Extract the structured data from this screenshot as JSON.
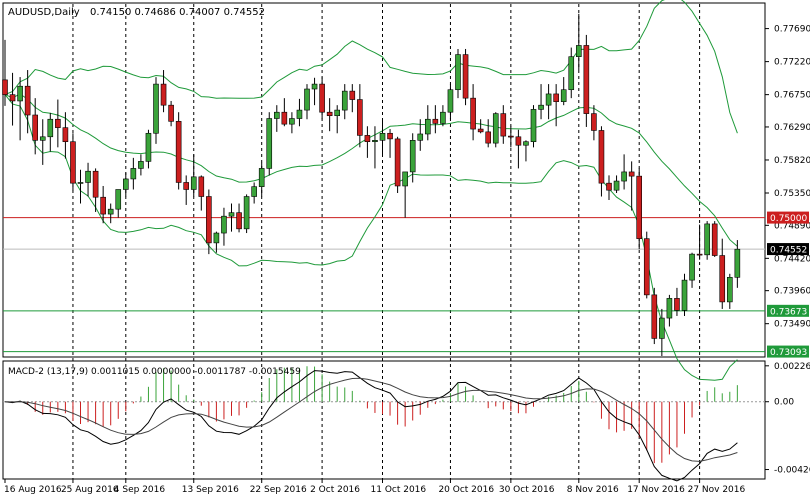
{
  "header": {
    "symbol": "AUDUSD,Daily",
    "ohlc": "0.74150 0.74686 0.74007 0.74552"
  },
  "macd_header": "MACD-2 (13,17,9) 0.0011015 0.0000000 -0.0011787 -0.0015459",
  "colors": {
    "bull": "#3aa33a",
    "bear": "#cc1f1f",
    "bands": "#1f9a3a",
    "resistance": "#cc1f1f",
    "support": "#1f9a3a",
    "current": "#000000"
  },
  "chart_data": [
    {
      "type": "candlestick",
      "title": "AUDUSD,Daily",
      "ylim": [
        0.7303,
        0.7804
      ],
      "y_ticks": [
        "0.77690",
        "0.77220",
        "0.76750",
        "0.76290",
        "0.75820",
        "0.75350",
        "0.74890",
        "0.74420",
        "0.73960",
        "0.73490"
      ],
      "x_ticks": [
        "16 Aug 2016",
        "25 Aug 2016",
        "4 Sep 2016",
        "13 Sep 2016",
        "22 Sep 2016",
        "2 Oct 2016",
        "11 Oct 2016",
        "20 Oct 2016",
        "30 Oct 2016",
        "8 Nov 2016",
        "17 Nov 2016",
        "27 Nov 2016"
      ],
      "price_labels": [
        {
          "name": "resistance",
          "value": "0.75000"
        },
        {
          "name": "current",
          "value": "0.74552"
        },
        {
          "name": "support-1",
          "value": "0.73673"
        },
        {
          "name": "support-2",
          "value": "0.73093"
        }
      ],
      "candles": [
        [
          0.7696,
          0.7753,
          0.7659,
          0.7675
        ],
        [
          0.7675,
          0.7706,
          0.7631,
          0.7666
        ],
        [
          0.7666,
          0.77,
          0.761,
          0.7687
        ],
        [
          0.7687,
          0.771,
          0.762,
          0.7646
        ],
        [
          0.7646,
          0.767,
          0.759,
          0.761
        ],
        [
          0.761,
          0.764,
          0.7575,
          0.7615
        ],
        [
          0.7615,
          0.7649,
          0.7594,
          0.764
        ],
        [
          0.764,
          0.7668,
          0.76,
          0.7628
        ],
        [
          0.7628,
          0.765,
          0.7584,
          0.7608
        ],
        [
          0.7608,
          0.762,
          0.7538,
          0.7549
        ],
        [
          0.7549,
          0.7568,
          0.752,
          0.755
        ],
        [
          0.755,
          0.7578,
          0.753,
          0.7566
        ],
        [
          0.7566,
          0.757,
          0.7508,
          0.7529
        ],
        [
          0.7529,
          0.7545,
          0.7492,
          0.7505
        ],
        [
          0.7505,
          0.752,
          0.7492,
          0.7512
        ],
        [
          0.7512,
          0.754,
          0.75,
          0.754
        ],
        [
          0.754,
          0.7564,
          0.753,
          0.7555
        ],
        [
          0.7555,
          0.7585,
          0.754,
          0.757
        ],
        [
          0.757,
          0.759,
          0.756,
          0.758
        ],
        [
          0.758,
          0.7625,
          0.757,
          0.762
        ],
        [
          0.762,
          0.77,
          0.7605,
          0.769
        ],
        [
          0.769,
          0.771,
          0.765,
          0.766
        ],
        [
          0.766,
          0.7666,
          0.763,
          0.7637
        ],
        [
          0.7637,
          0.765,
          0.754,
          0.755
        ],
        [
          0.755,
          0.756,
          0.7518,
          0.754
        ],
        [
          0.754,
          0.759,
          0.753,
          0.7558
        ],
        [
          0.7558,
          0.756,
          0.751,
          0.753
        ],
        [
          0.753,
          0.754,
          0.7448,
          0.7464
        ],
        [
          0.7464,
          0.748,
          0.745,
          0.7478
        ],
        [
          0.7478,
          0.7514,
          0.746,
          0.7502
        ],
        [
          0.7502,
          0.752,
          0.748,
          0.7507
        ],
        [
          0.7507,
          0.752,
          0.7479,
          0.7484
        ],
        [
          0.7484,
          0.7533,
          0.7478,
          0.753
        ],
        [
          0.753,
          0.755,
          0.752,
          0.7544
        ],
        [
          0.7544,
          0.7578,
          0.753,
          0.757
        ],
        [
          0.757,
          0.765,
          0.756,
          0.7641
        ],
        [
          0.7641,
          0.766,
          0.7622,
          0.765
        ],
        [
          0.765,
          0.767,
          0.763,
          0.7633
        ],
        [
          0.7633,
          0.765,
          0.762,
          0.7641
        ],
        [
          0.7641,
          0.7669,
          0.763,
          0.7653
        ],
        [
          0.7653,
          0.769,
          0.764,
          0.7683
        ],
        [
          0.7683,
          0.7699,
          0.766,
          0.769
        ],
        [
          0.769,
          0.77,
          0.764,
          0.765
        ],
        [
          0.765,
          0.767,
          0.7623,
          0.7645
        ],
        [
          0.7645,
          0.766,
          0.762,
          0.7653
        ],
        [
          0.7653,
          0.769,
          0.764,
          0.768
        ],
        [
          0.768,
          0.769,
          0.765,
          0.7668
        ],
        [
          0.7668,
          0.769,
          0.76,
          0.7617
        ],
        [
          0.7617,
          0.763,
          0.7585,
          0.7608
        ],
        [
          0.7608,
          0.763,
          0.757,
          0.761
        ],
        [
          0.761,
          0.764,
          0.759,
          0.762
        ],
        [
          0.762,
          0.7626,
          0.7585,
          0.7612
        ],
        [
          0.7612,
          0.7615,
          0.7535,
          0.7545
        ],
        [
          0.7545,
          0.756,
          0.75,
          0.7565
        ],
        [
          0.7565,
          0.762,
          0.755,
          0.761
        ],
        [
          0.761,
          0.764,
          0.7595,
          0.7619
        ],
        [
          0.7619,
          0.766,
          0.761,
          0.764
        ],
        [
          0.764,
          0.766,
          0.762,
          0.7634
        ],
        [
          0.7634,
          0.766,
          0.763,
          0.765
        ],
        [
          0.765,
          0.769,
          0.764,
          0.7682
        ],
        [
          0.7682,
          0.774,
          0.767,
          0.7732
        ],
        [
          0.7732,
          0.774,
          0.766,
          0.767
        ],
        [
          0.767,
          0.769,
          0.761,
          0.7626
        ],
        [
          0.7626,
          0.764,
          0.762,
          0.7622
        ],
        [
          0.7622,
          0.764,
          0.76,
          0.7606
        ],
        [
          0.7606,
          0.765,
          0.76,
          0.7648
        ],
        [
          0.7648,
          0.766,
          0.7605,
          0.7616
        ],
        [
          0.7616,
          0.763,
          0.76,
          0.7615
        ],
        [
          0.7615,
          0.7625,
          0.757,
          0.7603
        ],
        [
          0.7603,
          0.761,
          0.758,
          0.7608
        ],
        [
          0.7608,
          0.766,
          0.76,
          0.7654
        ],
        [
          0.7654,
          0.769,
          0.764,
          0.766
        ],
        [
          0.766,
          0.769,
          0.764,
          0.7676
        ],
        [
          0.7676,
          0.769,
          0.763,
          0.7665
        ],
        [
          0.7665,
          0.77,
          0.766,
          0.7682
        ],
        [
          0.7682,
          0.7742,
          0.767,
          0.7729
        ],
        [
          0.7729,
          0.779,
          0.771,
          0.7745
        ],
        [
          0.7745,
          0.776,
          0.7629,
          0.7648
        ],
        [
          0.7648,
          0.766,
          0.761,
          0.7624
        ],
        [
          0.7624,
          0.763,
          0.753,
          0.7549
        ],
        [
          0.7549,
          0.756,
          0.7525,
          0.7539
        ],
        [
          0.7539,
          0.756,
          0.7535,
          0.7552
        ],
        [
          0.7552,
          0.759,
          0.754,
          0.7565
        ],
        [
          0.7565,
          0.758,
          0.751,
          0.7559
        ],
        [
          0.7559,
          0.757,
          0.7455,
          0.747
        ],
        [
          0.747,
          0.748,
          0.7385,
          0.739
        ],
        [
          0.739,
          0.74,
          0.732,
          0.7328
        ],
        [
          0.7328,
          0.737,
          0.7303,
          0.7357
        ],
        [
          0.7357,
          0.739,
          0.7345,
          0.7385
        ],
        [
          0.7385,
          0.74,
          0.736,
          0.7368
        ],
        [
          0.7368,
          0.742,
          0.736,
          0.7411
        ],
        [
          0.7411,
          0.745,
          0.74,
          0.7448
        ],
        [
          0.7448,
          0.749,
          0.744,
          0.7447
        ],
        [
          0.7447,
          0.7495,
          0.744,
          0.7491
        ],
        [
          0.7491,
          0.7495,
          0.7444,
          0.7446
        ],
        [
          0.7446,
          0.747,
          0.737,
          0.738
        ],
        [
          0.738,
          0.742,
          0.737,
          0.7415
        ],
        [
          0.7415,
          0.7468,
          0.74,
          0.7455
        ]
      ],
      "indicator": {
        "name": "MACD-2 (13,17,9)",
        "ylim": [
          -0.0048,
          0.0025
        ],
        "y_ticks": [
          "0.00226",
          "0.00",
          "-0.004267"
        ]
      }
    }
  ]
}
